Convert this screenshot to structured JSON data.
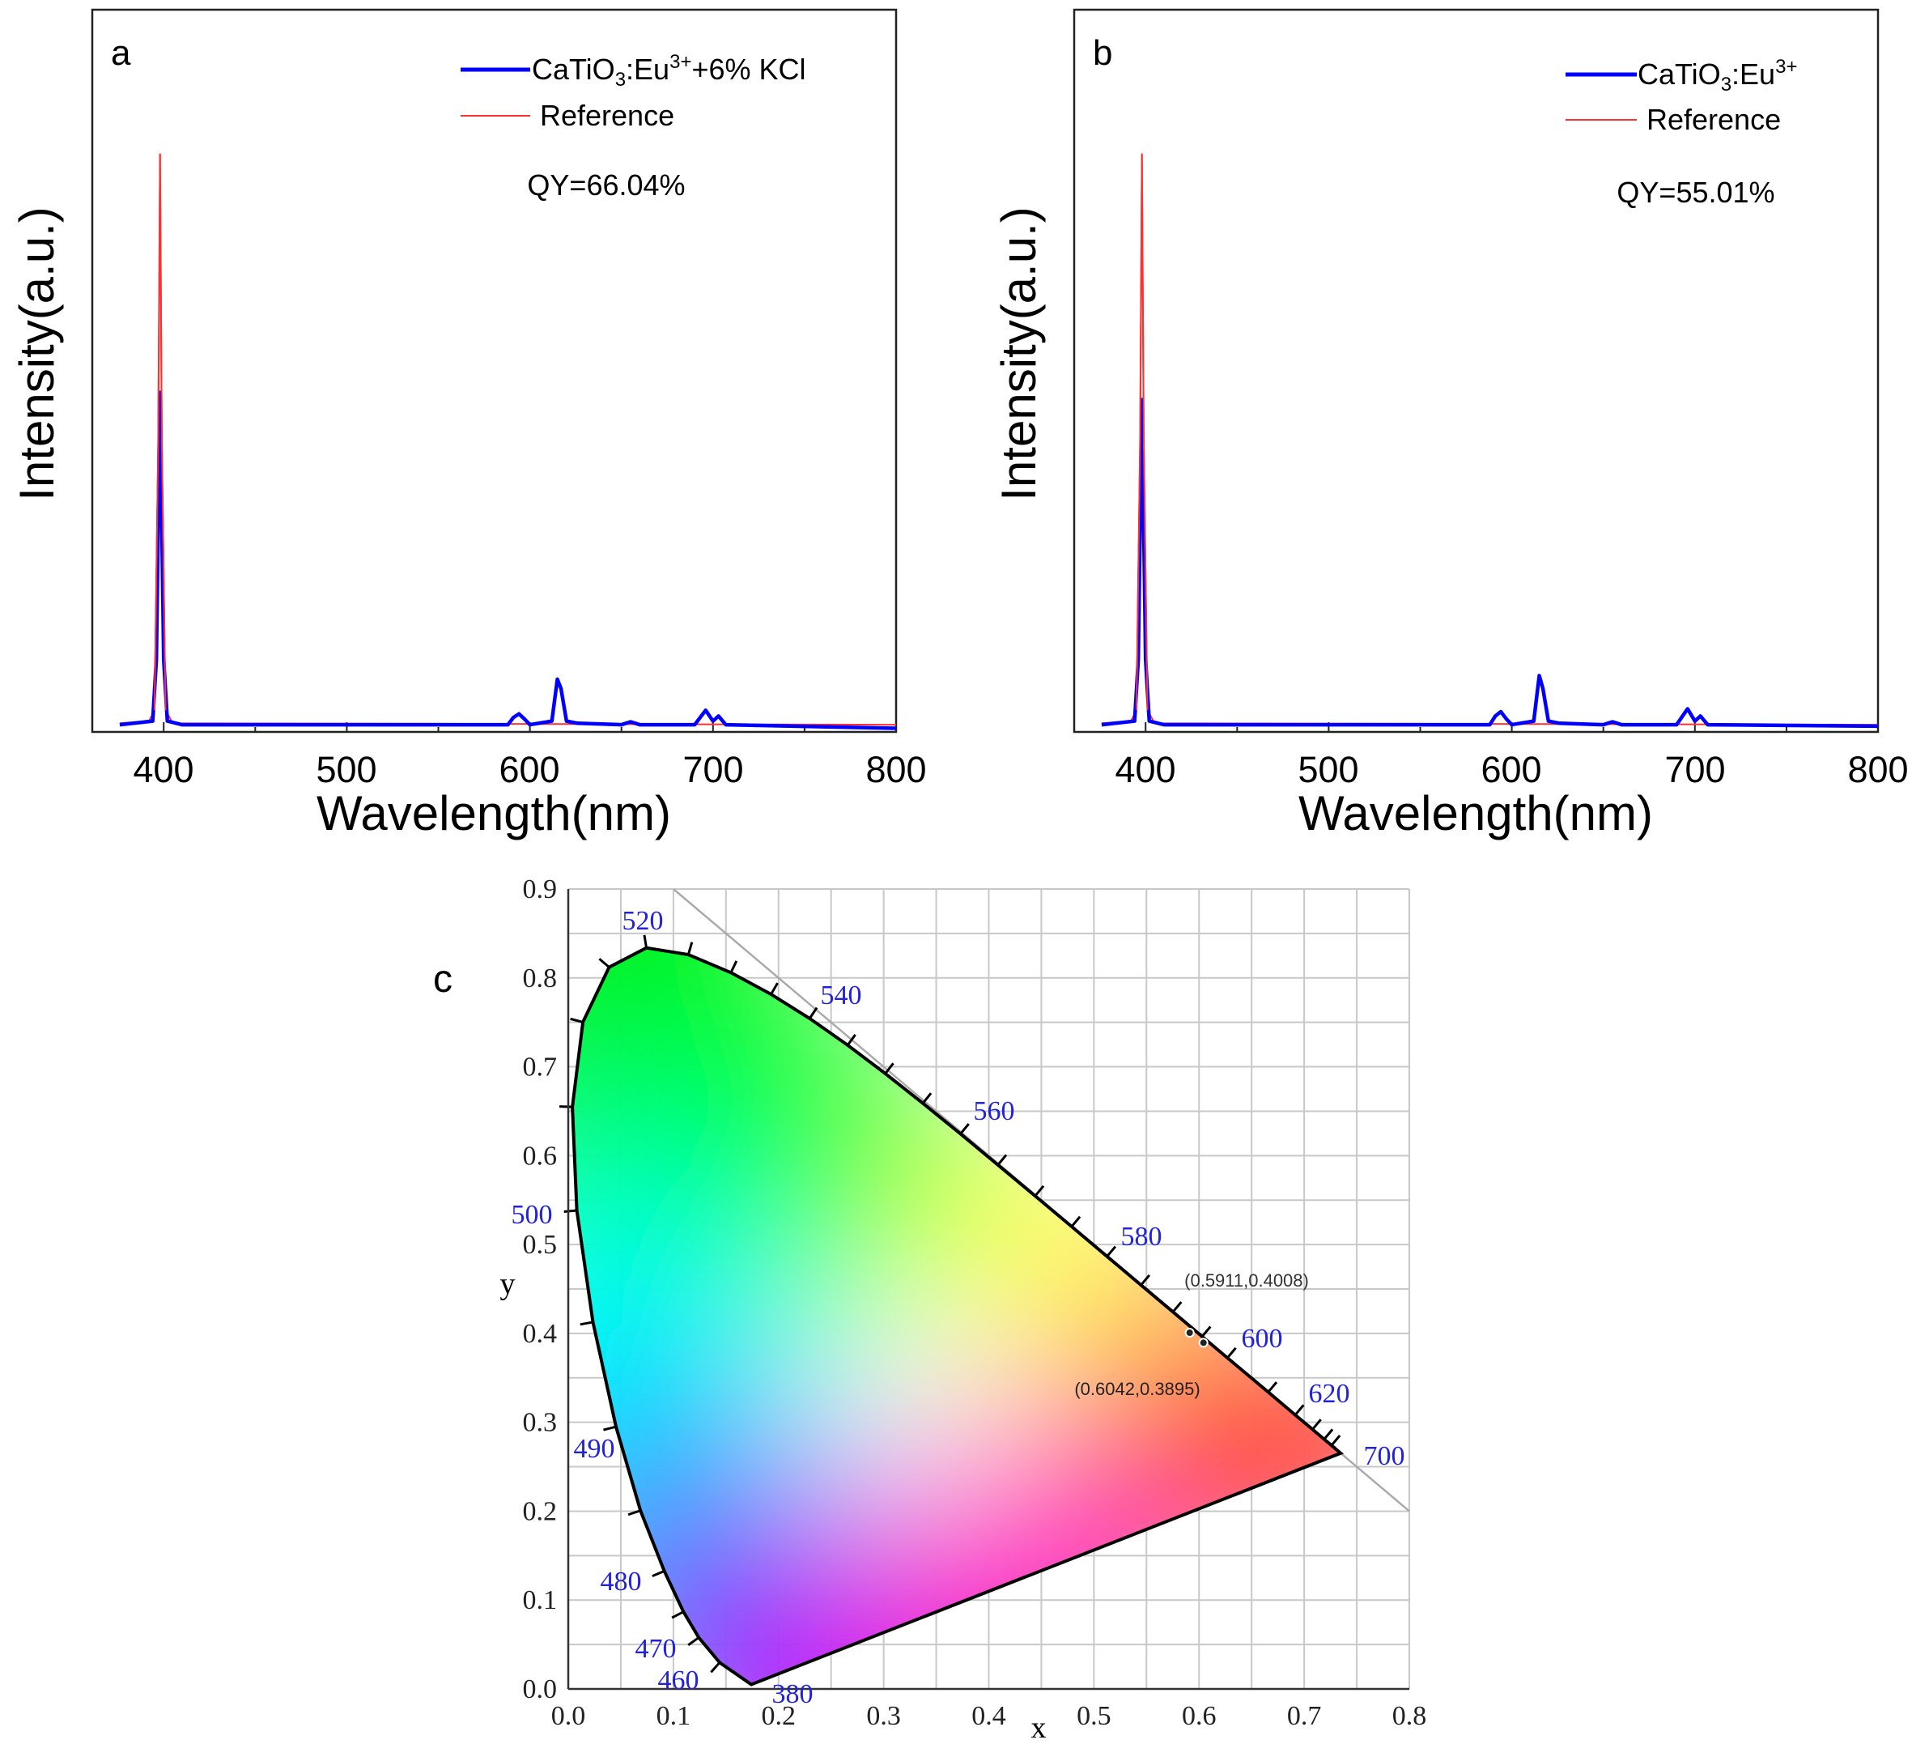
{
  "chart_data": [
    {
      "type": "line",
      "panel_label": "a",
      "xlabel": "Wavelength(nm)",
      "ylabel": "Intensity(a.u.)",
      "xlim": [
        361,
        800
      ],
      "ylim": [
        0,
        1
      ],
      "xticks": [
        "400",
        "500",
        "600",
        "700",
        "800"
      ],
      "annotation": "QY=66.04%",
      "legend_position": "top-right",
      "series": [
        {
          "name": "CaTiO3:Eu3+ +6% KCl",
          "name_base": "CaTiO",
          "name_sub": "3",
          "name_mid": ":Eu",
          "name_sup": "3+",
          "name_tail": "+6% KCl",
          "color": "#0000ff",
          "points": [
            [
              376,
              0.01
            ],
            [
              394,
              0.015
            ],
            [
              396,
              0.1
            ],
            [
              398,
              0.47
            ],
            [
              400,
              0.1
            ],
            [
              402,
              0.015
            ],
            [
              410,
              0.01
            ],
            [
              588,
              0.01
            ],
            [
              591,
              0.02
            ],
            [
              594,
              0.025
            ],
            [
              597,
              0.018
            ],
            [
              600,
              0.01
            ],
            [
              612,
              0.015
            ],
            [
              615,
              0.073
            ],
            [
              617,
              0.06
            ],
            [
              620,
              0.015
            ],
            [
              626,
              0.012
            ],
            [
              650,
              0.01
            ],
            [
              655,
              0.014
            ],
            [
              660,
              0.01
            ],
            [
              690,
              0.01
            ],
            [
              696,
              0.03
            ],
            [
              700,
              0.015
            ],
            [
              703,
              0.022
            ],
            [
              707,
              0.01
            ],
            [
              800,
              0.005
            ]
          ]
        },
        {
          "name": "Reference",
          "color": "#ff3030",
          "points": [
            [
              376,
              0.012
            ],
            [
              392,
              0.015
            ],
            [
              395,
              0.03
            ],
            [
              397,
              0.4
            ],
            [
              398,
              0.8
            ],
            [
              399,
              0.4
            ],
            [
              401,
              0.03
            ],
            [
              405,
              0.012
            ],
            [
              800,
              0.01
            ]
          ]
        }
      ]
    },
    {
      "type": "line",
      "panel_label": "b",
      "xlabel": "Wavelength(nm)",
      "ylabel": "Intensity(a.u.)",
      "xlim": [
        361,
        800
      ],
      "ylim": [
        0,
        1
      ],
      "xticks": [
        "400",
        "500",
        "600",
        "700",
        "800"
      ],
      "annotation": "QY=55.01%",
      "legend_position": "top-right",
      "series": [
        {
          "name": "CaTiO3:Eu3+",
          "name_base": "CaTiO",
          "name_sub": "3",
          "name_mid": ":Eu",
          "name_sup": "3+",
          "name_tail": "",
          "color": "#0000ff",
          "points": [
            [
              376,
              0.01
            ],
            [
              394,
              0.015
            ],
            [
              396,
              0.1
            ],
            [
              398,
              0.46
            ],
            [
              400,
              0.1
            ],
            [
              402,
              0.015
            ],
            [
              410,
              0.01
            ],
            [
              588,
              0.01
            ],
            [
              591,
              0.022
            ],
            [
              594,
              0.028
            ],
            [
              597,
              0.018
            ],
            [
              600,
              0.01
            ],
            [
              612,
              0.015
            ],
            [
              615,
              0.078
            ],
            [
              617,
              0.06
            ],
            [
              620,
              0.015
            ],
            [
              626,
              0.012
            ],
            [
              650,
              0.01
            ],
            [
              655,
              0.014
            ],
            [
              660,
              0.01
            ],
            [
              690,
              0.01
            ],
            [
              696,
              0.032
            ],
            [
              700,
              0.015
            ],
            [
              703,
              0.022
            ],
            [
              707,
              0.01
            ],
            [
              800,
              0.008
            ]
          ]
        },
        {
          "name": "Reference",
          "color": "#ff3030",
          "points": [
            [
              376,
              0.012
            ],
            [
              392,
              0.015
            ],
            [
              395,
              0.03
            ],
            [
              397,
              0.4
            ],
            [
              398,
              0.8
            ],
            [
              399,
              0.4
            ],
            [
              401,
              0.03
            ],
            [
              405,
              0.012
            ],
            [
              800,
              0.01
            ]
          ]
        }
      ]
    },
    {
      "type": "scatter",
      "subtype": "CIE 1931 chromaticity diagram",
      "panel_label": "c",
      "xlabel": "x",
      "ylabel": "y",
      "xlim": [
        0,
        0.8
      ],
      "ylim": [
        0,
        0.9
      ],
      "grid": true,
      "xticks": [
        "0.0",
        "0.1",
        "0.2",
        "0.3",
        "0.4",
        "0.5",
        "0.6",
        "0.7",
        "0.8"
      ],
      "yticks": [
        "0.0",
        "0.1",
        "0.2",
        "0.3",
        "0.4",
        "0.5",
        "0.6",
        "0.7",
        "0.8",
        "0.9"
      ],
      "wavelength_labels": [
        "520",
        "540",
        "560",
        "580",
        "600",
        "620",
        "700",
        "500",
        "490",
        "480",
        "470",
        "460",
        "380"
      ],
      "points": [
        {
          "label": "(0.5911,0.4008)",
          "x": 0.5911,
          "y": 0.4008
        },
        {
          "label": "(0.6042,0.3895)",
          "x": 0.6042,
          "y": 0.3895
        }
      ],
      "label_color": "#2222dd"
    }
  ]
}
